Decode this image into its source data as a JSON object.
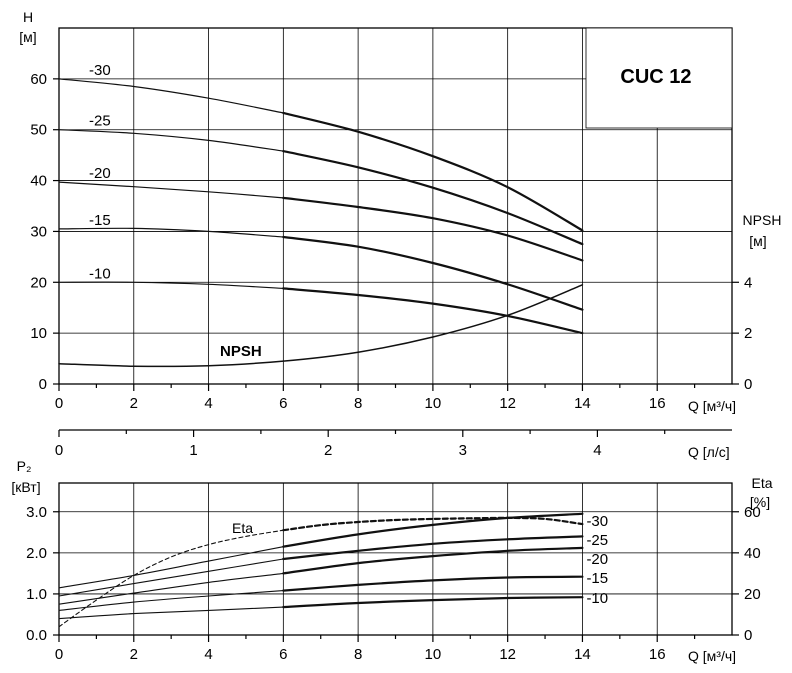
{
  "chart_data": [
    {
      "type": "line",
      "title": "CUC 12",
      "y_unit_letter": "H",
      "y_unit": "[м]",
      "y2_unit_letter": "NPSH",
      "y2_unit": "[м]",
      "x_label": "Q [м³/ч]",
      "xlim": [
        0,
        18
      ],
      "ylim": [
        0,
        70
      ],
      "y2lim": [
        0,
        14
      ],
      "x_ticks": [
        0,
        2,
        4,
        6,
        8,
        10,
        12,
        14,
        16
      ],
      "y_ticks": [
        0,
        10,
        20,
        30,
        40,
        50,
        60
      ],
      "y2_ticks": [
        0,
        2,
        4
      ],
      "grid": true,
      "npsh_label": "NPSH",
      "series": [
        {
          "name": "-30",
          "x": [
            0,
            2,
            4,
            6,
            8,
            10,
            12,
            14
          ],
          "y": [
            60,
            58.5,
            56.2,
            53.3,
            49.6,
            44.8,
            38.7,
            30.2
          ]
        },
        {
          "name": "-25",
          "x": [
            0,
            2,
            4,
            6,
            8,
            10,
            12,
            14
          ],
          "y": [
            50,
            49.3,
            47.9,
            45.8,
            42.6,
            38.6,
            33.6,
            27.5
          ]
        },
        {
          "name": "-20",
          "x": [
            0,
            2,
            4,
            6,
            8,
            10,
            12,
            14
          ],
          "y": [
            39.7,
            38.8,
            37.8,
            36.6,
            34.8,
            32.6,
            29.2,
            24.3
          ]
        },
        {
          "name": "-15",
          "x": [
            0,
            2,
            4,
            6,
            8,
            10,
            12,
            14
          ],
          "y": [
            30.5,
            30.6,
            30.0,
            28.9,
            27.0,
            23.8,
            19.6,
            14.6
          ]
        },
        {
          "name": "-10",
          "x": [
            0,
            2,
            4,
            6,
            8,
            10,
            12,
            14
          ],
          "y": [
            20.0,
            20.0,
            19.6,
            18.8,
            17.5,
            15.8,
            13.4,
            10.0
          ]
        }
      ],
      "npsh": {
        "x": [
          0,
          2,
          4,
          6,
          8,
          10,
          12,
          14
        ],
        "y": [
          0.8,
          0.7,
          0.72,
          0.9,
          1.25,
          1.85,
          2.7,
          3.9
        ]
      }
    },
    {
      "type": "axis",
      "x_label": "Q [л/с]",
      "xlim": [
        0,
        5
      ],
      "x_ticks": [
        0,
        1,
        2,
        3,
        4
      ]
    },
    {
      "type": "line",
      "y_unit_letter": "P₂",
      "y_unit": "[кВт]",
      "y2_unit_letter": "Eta",
      "y2_unit": "[%]",
      "x_label": "Q [м³/ч]",
      "xlim": [
        0,
        18
      ],
      "ylim": [
        0,
        3.0
      ],
      "y2lim": [
        0,
        60
      ],
      "x_ticks": [
        0,
        2,
        4,
        6,
        8,
        10,
        12,
        14,
        16
      ],
      "y_ticks": [
        "0.0",
        "1.0",
        "2.0",
        "3.0"
      ],
      "y2_ticks": [
        0,
        20,
        40,
        60
      ],
      "grid": true,
      "series": [
        {
          "name": "-30",
          "x": [
            0,
            2,
            4,
            6,
            8,
            10,
            12,
            14
          ],
          "y": [
            1.15,
            1.45,
            1.8,
            2.15,
            2.45,
            2.68,
            2.85,
            2.95
          ]
        },
        {
          "name": "-25",
          "x": [
            0,
            2,
            4,
            6,
            8,
            10,
            12,
            14
          ],
          "y": [
            0.95,
            1.25,
            1.55,
            1.85,
            2.05,
            2.22,
            2.33,
            2.4
          ]
        },
        {
          "name": "-20",
          "x": [
            0,
            2,
            4,
            6,
            8,
            10,
            12,
            14
          ],
          "y": [
            0.75,
            1.02,
            1.28,
            1.5,
            1.75,
            1.92,
            2.05,
            2.12
          ]
        },
        {
          "name": "-15",
          "x": [
            0,
            2,
            4,
            6,
            8,
            10,
            12,
            14
          ],
          "y": [
            0.6,
            0.8,
            0.95,
            1.08,
            1.22,
            1.33,
            1.4,
            1.42
          ]
        },
        {
          "name": "-10",
          "x": [
            0,
            2,
            4,
            6,
            8,
            10,
            12,
            14
          ],
          "y": [
            0.4,
            0.52,
            0.6,
            0.68,
            0.78,
            0.85,
            0.9,
            0.92
          ]
        }
      ],
      "eta": {
        "label": "Eta",
        "x": [
          0,
          1,
          2,
          3,
          4,
          5,
          6,
          7,
          8,
          9,
          10,
          11,
          12,
          13,
          14
        ],
        "y": [
          4,
          17,
          29,
          38,
          44,
          48,
          51,
          53.5,
          55,
          56,
          56.5,
          56.8,
          57,
          56.5,
          54
        ]
      }
    }
  ]
}
